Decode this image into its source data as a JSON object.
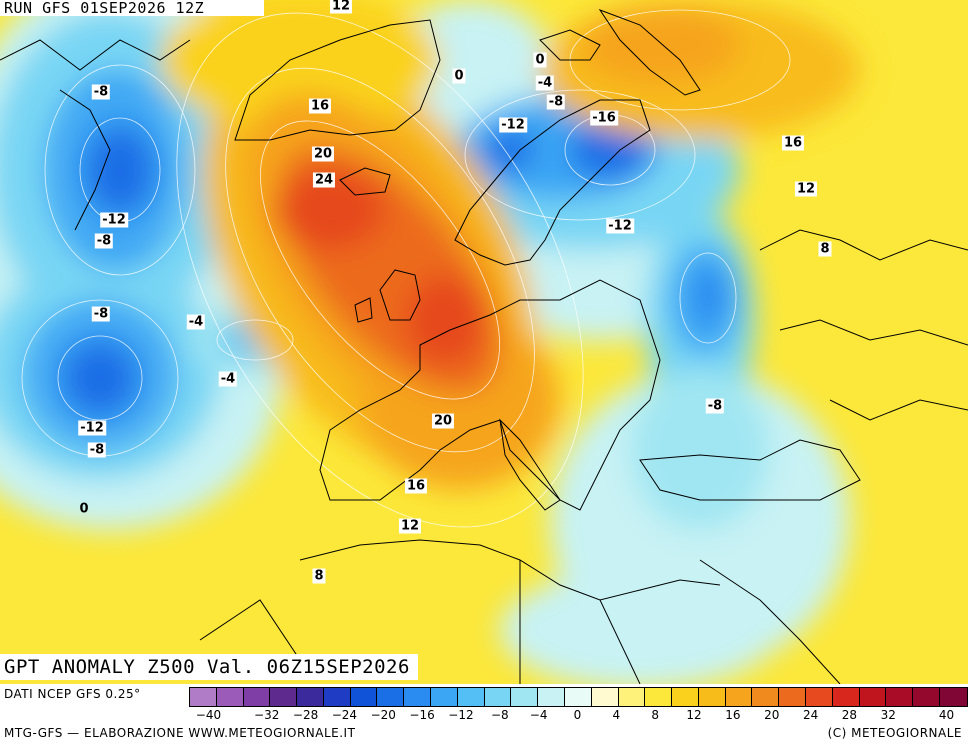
{
  "header": {
    "run_label": "RUN GFS 01SEP2026 12Z"
  },
  "title": {
    "text": "GPT ANOMALY Z500 Val. 06Z15SEP2026"
  },
  "contour_labels": [
    {
      "id": "lbl-12-top",
      "text": "12"
    },
    {
      "id": "lbl-0-a",
      "text": "0"
    },
    {
      "id": "lbl-0-b",
      "text": "0"
    },
    {
      "id": "lbl-m4-a",
      "text": "-4"
    },
    {
      "id": "lbl-m8-a",
      "text": "-8"
    },
    {
      "id": "lbl-m8-greenland",
      "text": "-8"
    },
    {
      "id": "lbl-16-greenland",
      "text": "16"
    },
    {
      "id": "lbl-m12-norway",
      "text": "-12"
    },
    {
      "id": "lbl-m16-finland",
      "text": "-16"
    },
    {
      "id": "lbl-20-north",
      "text": "20"
    },
    {
      "id": "lbl-24",
      "text": "24"
    },
    {
      "id": "lbl-16-russia",
      "text": "16"
    },
    {
      "id": "lbl-12-russia",
      "text": "12"
    },
    {
      "id": "lbl-m12-west",
      "text": "-12"
    },
    {
      "id": "lbl-m8-west",
      "text": "-8"
    },
    {
      "id": "lbl-m12-baltic",
      "text": "-12"
    },
    {
      "id": "lbl-8-east",
      "text": "8"
    },
    {
      "id": "lbl-m8-atl",
      "text": "-8"
    },
    {
      "id": "lbl-m4-atl-a",
      "text": "-4"
    },
    {
      "id": "lbl-m4-atl-b",
      "text": "-4"
    },
    {
      "id": "lbl-m12-atl",
      "text": "-12"
    },
    {
      "id": "lbl-m8-atl-b",
      "text": "-8"
    },
    {
      "id": "lbl-20-france",
      "text": "20"
    },
    {
      "id": "lbl-m8-balkans",
      "text": "-8"
    },
    {
      "id": "lbl-0-atl",
      "text": "0"
    },
    {
      "id": "lbl-16-spain",
      "text": "16"
    },
    {
      "id": "lbl-12-spain",
      "text": "12"
    },
    {
      "id": "lbl-8-africa",
      "text": "8"
    }
  ],
  "legend": {
    "data_source": "DATI NCEP GFS 0.25°",
    "colors": [
      "#b07cc8",
      "#9a5cb8",
      "#7e3ea6",
      "#5e2a8e",
      "#3a2a9c",
      "#1f3cc4",
      "#1052d8",
      "#1a6ee6",
      "#2a8cf0",
      "#3aa6f4",
      "#54bff4",
      "#78d6f4",
      "#a0e6f2",
      "#c8f2f4",
      "#e8fbf6",
      "#fffad0",
      "#fff27a",
      "#fce83a",
      "#fad21e",
      "#f8bc1a",
      "#f6a41e",
      "#f08a1e",
      "#ec6a1e",
      "#e64a1e",
      "#d8281e",
      "#c0141e",
      "#a80c26",
      "#94082e",
      "#800636"
    ],
    "ticks": [
      "−40",
      "−32",
      "−28",
      "−24",
      "−20",
      "−16",
      "−12",
      "−8",
      "−4",
      "0",
      "4",
      "8",
      "12",
      "16",
      "20",
      "24",
      "28",
      "32",
      "40"
    ],
    "footer_left": "MTG-GFS — ELABORAZIONE WWW.METEOGIORNALE.IT",
    "footer_right": "(C) METEOGIORNALE"
  }
}
